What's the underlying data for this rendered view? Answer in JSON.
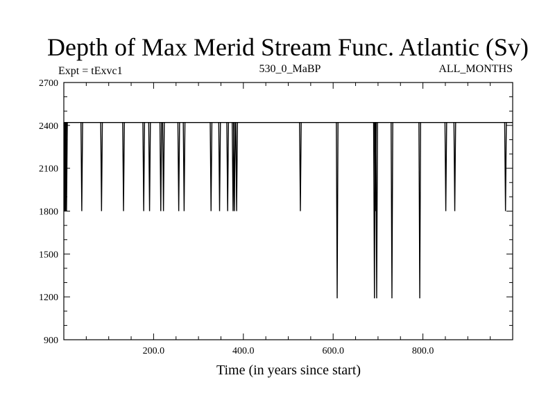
{
  "chart_data": {
    "type": "line",
    "title": "Depth of Max Merid Stream Func. Atlantic (Sv)",
    "subtitle_left": "Expt = tExvc1",
    "subtitle_center": "530_0_MaBP",
    "subtitle_right": "ALL_MONTHS",
    "xlabel": "Time (in years since start)",
    "ylabel": "",
    "xlim": [
      0,
      1000
    ],
    "ylim": [
      900,
      2700
    ],
    "xticks": [
      200,
      400,
      600,
      800
    ],
    "xtick_labels": [
      "200.0",
      "400.0",
      "600.0",
      "800.0"
    ],
    "yticks": [
      900,
      1200,
      1500,
      1800,
      2100,
      2400,
      2700
    ],
    "ytick_labels": [
      "900",
      "1200",
      "1500",
      "1800",
      "2100",
      "2400",
      "2700"
    ],
    "baseline": 2420,
    "series": [
      {
        "name": "Depth of Max Merid Stream Func. Atlantic",
        "dips": [
          {
            "x": 2,
            "y": 1800
          },
          {
            "x": 4,
            "y": 1800
          },
          {
            "x": 6,
            "y": 1800
          },
          {
            "x": 40,
            "y": 1800
          },
          {
            "x": 84,
            "y": 1800
          },
          {
            "x": 133,
            "y": 1800
          },
          {
            "x": 178,
            "y": 1800
          },
          {
            "x": 191,
            "y": 1800
          },
          {
            "x": 216,
            "y": 1800
          },
          {
            "x": 222,
            "y": 1800
          },
          {
            "x": 256,
            "y": 1800
          },
          {
            "x": 268,
            "y": 1800
          },
          {
            "x": 328,
            "y": 1800
          },
          {
            "x": 347,
            "y": 1800
          },
          {
            "x": 365,
            "y": 1800
          },
          {
            "x": 377,
            "y": 1800
          },
          {
            "x": 380,
            "y": 1800
          },
          {
            "x": 385,
            "y": 1800
          },
          {
            "x": 527,
            "y": 1800
          },
          {
            "x": 609,
            "y": 1190
          },
          {
            "x": 692,
            "y": 1190
          },
          {
            "x": 694,
            "y": 1800
          },
          {
            "x": 697,
            "y": 1190
          },
          {
            "x": 731,
            "y": 1190
          },
          {
            "x": 793,
            "y": 1190
          },
          {
            "x": 851,
            "y": 1800
          },
          {
            "x": 871,
            "y": 1800
          },
          {
            "x": 984,
            "y": 1800
          }
        ]
      }
    ]
  }
}
